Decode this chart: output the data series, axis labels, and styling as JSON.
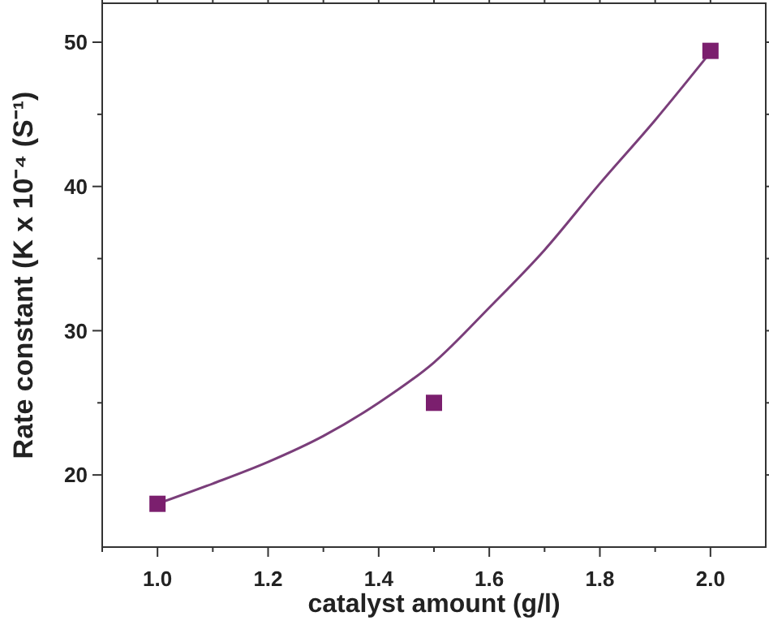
{
  "chart_data": {
    "type": "scatter",
    "xlabel": "catalyst amount (g/l)",
    "ylabel": "Rate constant (K x 10⁻⁴ (S⁻¹)",
    "xlim": [
      0.9,
      2.1
    ],
    "ylim": [
      15,
      52.7
    ],
    "xticks": [
      {
        "value": 0.9,
        "label": null
      },
      {
        "value": 1.0,
        "label": "1.0"
      },
      {
        "value": 1.1,
        "label": null
      },
      {
        "value": 1.2,
        "label": "1.2"
      },
      {
        "value": 1.3,
        "label": null
      },
      {
        "value": 1.4,
        "label": "1.4"
      },
      {
        "value": 1.5,
        "label": null
      },
      {
        "value": 1.6,
        "label": "1.6"
      },
      {
        "value": 1.7,
        "label": null
      },
      {
        "value": 1.8,
        "label": "1.8"
      },
      {
        "value": 1.9,
        "label": null
      },
      {
        "value": 2.0,
        "label": "2.0"
      }
    ],
    "yticks": [
      {
        "value": 20,
        "label": "20"
      },
      {
        "value": 25,
        "label": null
      },
      {
        "value": 30,
        "label": "30"
      },
      {
        "value": 35,
        "label": null
      },
      {
        "value": 40,
        "label": "40"
      },
      {
        "value": 45,
        "label": null
      },
      {
        "value": 50,
        "label": "50"
      }
    ],
    "grid": false,
    "series": [
      {
        "marker": "square",
        "color": "#7b1f6e",
        "x": [
          1.0,
          1.5,
          2.0
        ],
        "values": [
          18,
          25,
          49.4
        ]
      },
      {
        "type": "line",
        "marker": "none",
        "color": "#7a3e7a",
        "x": [
          1.0,
          1.1,
          1.2,
          1.3,
          1.4,
          1.5,
          1.6,
          1.7,
          1.8,
          1.9,
          2.0
        ],
        "values": [
          18,
          19.4,
          20.9,
          22.7,
          25,
          27.8,
          31.6,
          35.6,
          40.2,
          44.6,
          49.3
        ]
      }
    ]
  }
}
